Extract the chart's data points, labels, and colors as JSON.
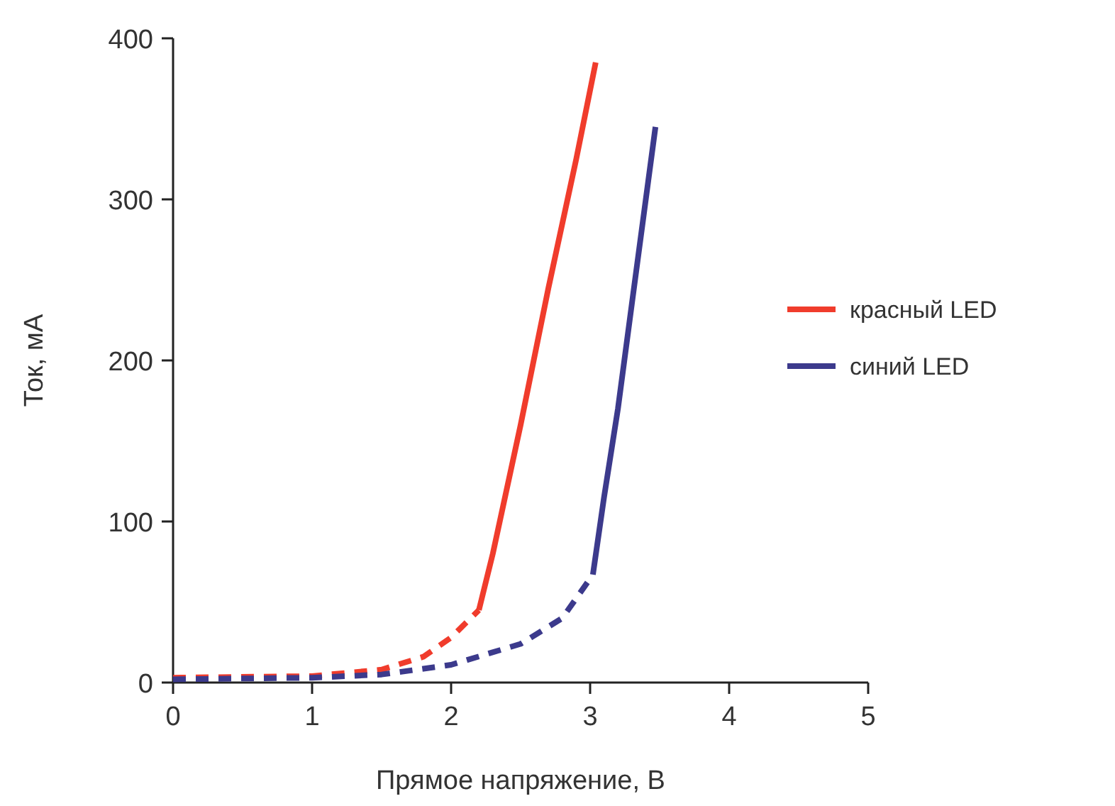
{
  "chart_data": {
    "type": "line",
    "xlabel": "Прямое напряжение, В",
    "ylabel": "Ток, мА",
    "xlim": [
      0,
      5
    ],
    "ylim": [
      0,
      400
    ],
    "xticks": [
      0,
      1,
      2,
      3,
      4,
      5
    ],
    "yticks": [
      0,
      100,
      200,
      300,
      400
    ],
    "legend": "right",
    "series": [
      {
        "name": "красный LED",
        "color": "#f03c2c",
        "line_style": "solid",
        "x": [
          2.2,
          2.3,
          2.5,
          2.7,
          2.9,
          3.04
        ],
        "values": [
          45,
          80,
          160,
          245,
          325,
          385
        ]
      },
      {
        "name": "синий LED",
        "color": "#3c3a8c",
        "line_style": "solid",
        "x": [
          3.02,
          3.1,
          3.2,
          3.3,
          3.47
        ],
        "values": [
          67,
          115,
          170,
          235,
          345
        ]
      },
      {
        "color": "#f03c2c",
        "line_style": "dashed",
        "x": [
          0,
          1,
          1.5,
          1.8,
          2,
          2.2
        ],
        "values": [
          3,
          4,
          8,
          16,
          28,
          45
        ]
      },
      {
        "color": "#3c3a8c",
        "line_style": "dashed",
        "x": [
          0,
          1,
          1.5,
          2,
          2.5,
          2.8,
          3.02
        ],
        "values": [
          2,
          3,
          5,
          11,
          24,
          40,
          67
        ]
      }
    ]
  }
}
